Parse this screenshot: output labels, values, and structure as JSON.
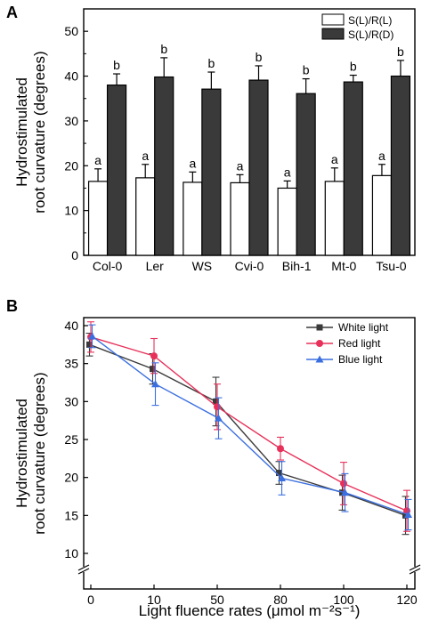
{
  "chart_data": [
    {
      "panel": "A",
      "type": "bar",
      "ylabel_line1": "Hydrostimulated",
      "ylabel_line2": "root curvature (degrees)",
      "xlabel": "",
      "ylim": [
        0,
        55
      ],
      "yticks": [
        0,
        10,
        20,
        30,
        40,
        50
      ],
      "categories": [
        "Col-0",
        "Ler",
        "WS",
        "Cvi-0",
        "Bih-1",
        "Mt-0",
        "Tsu-0"
      ],
      "legend_position": "top-right",
      "series": [
        {
          "name": "S(L)/R(L)",
          "color": "#ffffff",
          "values": [
            16.5,
            17.3,
            16.3,
            16.2,
            15.0,
            16.5,
            17.8
          ],
          "errors": [
            2.8,
            3.0,
            2.3,
            1.8,
            1.6,
            3.0,
            2.5
          ],
          "labels": [
            "a",
            "a",
            "a",
            "a",
            "a",
            "a",
            "a"
          ]
        },
        {
          "name": "S(L)/R(D)",
          "color": "#3a3a3a",
          "values": [
            38.0,
            39.8,
            37.1,
            39.1,
            36.1,
            38.7,
            40.0
          ],
          "errors": [
            2.5,
            4.3,
            3.8,
            3.2,
            3.3,
            1.5,
            3.5
          ],
          "labels": [
            "b",
            "b",
            "b",
            "b",
            "b",
            "b",
            "b"
          ]
        }
      ]
    },
    {
      "panel": "B",
      "type": "line",
      "ylabel_line1": "Hydrostimulated",
      "ylabel_line2": "root curvature (degrees)",
      "xlabel": "Light fluence rates (μmol m⁻²s⁻¹)",
      "ylim": [
        10,
        41
      ],
      "yticks": [
        10,
        15,
        20,
        25,
        30,
        35,
        40
      ],
      "categories": [
        "0",
        "10",
        "50",
        "80",
        "100",
        "120"
      ],
      "legend_position": "top-right",
      "axis_break": true,
      "series": [
        {
          "name": "White light",
          "color": "#3a3a3a",
          "marker": "square",
          "values": [
            37.5,
            34.3,
            30.0,
            20.6,
            18.0,
            15.0
          ],
          "errors": [
            1.5,
            2.0,
            3.2,
            1.5,
            2.3,
            2.5
          ]
        },
        {
          "name": "Red light",
          "color": "#e8315a",
          "marker": "circle",
          "values": [
            38.5,
            36.0,
            29.3,
            23.8,
            19.2,
            15.6
          ],
          "errors": [
            2.0,
            2.3,
            3.0,
            1.5,
            2.8,
            2.7
          ]
        },
        {
          "name": "Blue light",
          "color": "#3b6fe0",
          "marker": "triangle",
          "values": [
            38.6,
            32.3,
            27.8,
            19.9,
            18.0,
            15.1
          ],
          "errors": [
            1.5,
            2.8,
            2.7,
            2.2,
            2.5,
            2.0
          ]
        }
      ]
    }
  ]
}
